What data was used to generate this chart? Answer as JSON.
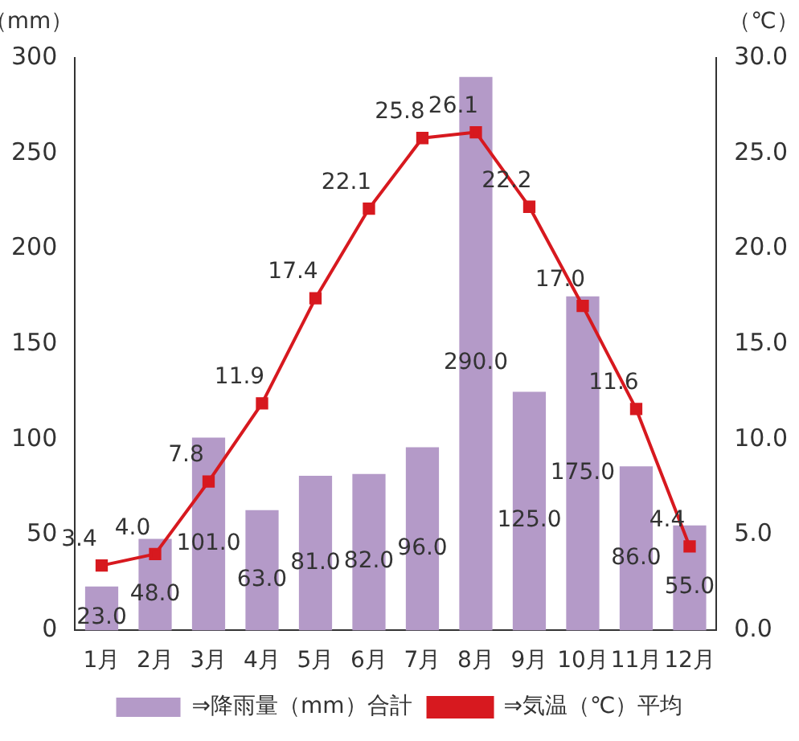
{
  "chart_data": {
    "type": "bar",
    "categories": [
      "1月",
      "2月",
      "3月",
      "4月",
      "5月",
      "6月",
      "7月",
      "8月",
      "9月",
      "10月",
      "11月",
      "12月"
    ],
    "ylabel": "（mm）",
    "y2label": "（℃）",
    "series": [
      {
        "name": "⇒降雨量（mm）合計",
        "color": "#b49ac8",
        "values": [
          23.0,
          48.0,
          101.0,
          63.0,
          81.0,
          82.0,
          96.0,
          290.0,
          125.0,
          175.0,
          86.0,
          55.0
        ],
        "value_labels": [
          "23.0",
          "48.0",
          "101.0",
          "63.0",
          "81.0",
          "82.0",
          "96.0",
          "290.0",
          "125.0",
          "175.0",
          "86.0",
          "55.0"
        ]
      },
      {
        "name": "⇒気温（℃）平均",
        "type": "line",
        "axis": "y2",
        "color": "#d7191f",
        "marker": "square",
        "values": [
          3.4,
          4.0,
          7.8,
          11.9,
          17.4,
          22.1,
          25.8,
          26.1,
          22.2,
          17.0,
          11.6,
          4.4
        ],
        "value_labels": [
          "3.4",
          "4.0",
          "7.8",
          "11.9",
          "17.4",
          "22.1",
          "25.8",
          "26.1",
          "22.2",
          "17.0",
          "11.6",
          "4.4"
        ]
      }
    ],
    "ylim": [
      0,
      300
    ],
    "yticks": [
      0,
      50,
      100,
      150,
      200,
      250,
      300
    ],
    "y2lim": [
      0,
      30
    ],
    "y2ticks": [
      {
        "value": 0,
        "label": "0.0"
      },
      {
        "value": 5,
        "label": "5.0"
      },
      {
        "value": 10,
        "label": "10.0"
      },
      {
        "value": 15,
        "label": "15.0"
      },
      {
        "value": 20,
        "label": "20.0"
      },
      {
        "value": 25,
        "label": "25.0"
      },
      {
        "value": 30,
        "label": "30.0"
      }
    ],
    "grid": false,
    "legend": "bottom"
  }
}
